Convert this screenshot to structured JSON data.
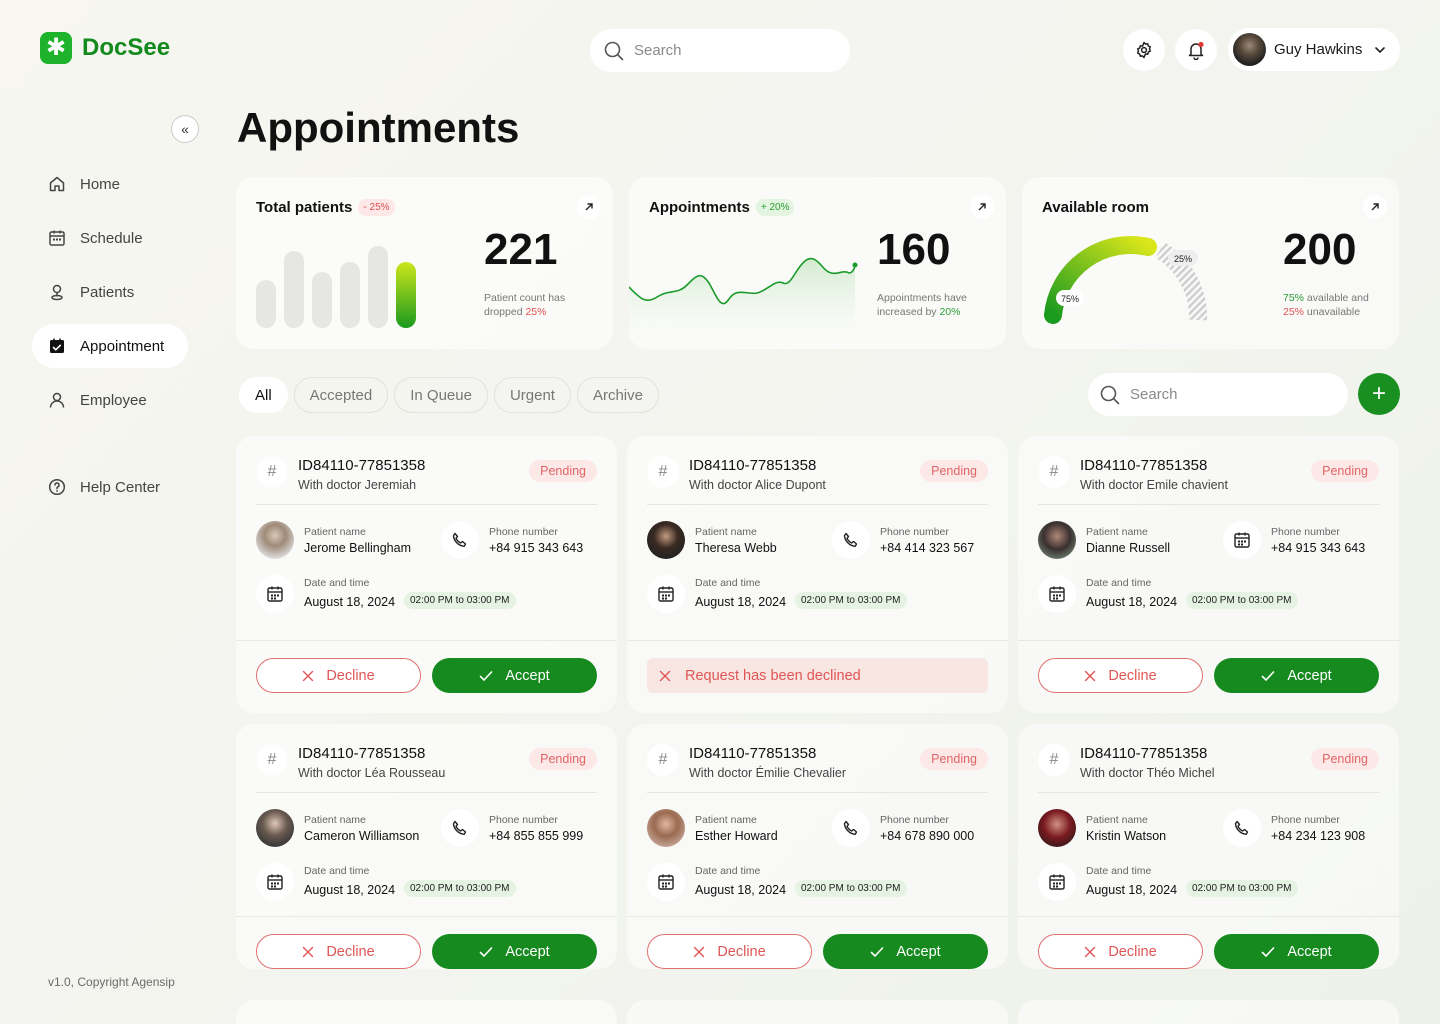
{
  "app": {
    "name": "DocSee"
  },
  "header": {
    "search_placeholder": "Search",
    "user_name": "Guy Hawkins"
  },
  "sidebar": {
    "items": [
      {
        "label": "Home",
        "icon": "home-icon"
      },
      {
        "label": "Schedule",
        "icon": "calendar-icon"
      },
      {
        "label": "Patients",
        "icon": "location-icon"
      },
      {
        "label": "Appointment",
        "icon": "calendar-check-icon",
        "active": true
      },
      {
        "label": "Employee",
        "icon": "user-icon"
      }
    ],
    "help": "Help Center",
    "version": "v1.0, Copyright Agensip"
  },
  "page": {
    "title": "Appointments"
  },
  "stats": [
    {
      "title": "Total patients",
      "badge": "- 25%",
      "value": "221",
      "note_a": "Patient count has dropped ",
      "note_b": "25%"
    },
    {
      "title": "Appointments",
      "badge": "+ 20%",
      "value": "160",
      "note_a": "Appointments have increased by ",
      "note_b": "20%"
    },
    {
      "title": "Available room",
      "value": "200",
      "available": "75%",
      "available_text": " available and",
      "unavailable": "25%",
      "unavailable_text": " unavailable",
      "gauge_a": "75%",
      "gauge_b": "25%"
    }
  ],
  "filters": {
    "tabs": [
      "All",
      "Accepted",
      "In Queue",
      "Urgent",
      "Archive"
    ],
    "search_placeholder": "Search"
  },
  "labels": {
    "patient": "Patient name",
    "phone": "Phone number",
    "datetime": "Date and time",
    "decline": "Decline",
    "accept": "Accept",
    "declined": "Request has been declined"
  },
  "cards": [
    {
      "id": "ID84110-77851358",
      "doctor": "With doctor Jeremiah",
      "status": "Pending",
      "patient": "Jerome Bellingham",
      "phone": "+84 915 343 643",
      "date": "August 18, 2024",
      "time": "02:00 PM to 03:00 PM"
    },
    {
      "id": "ID84110-77851358",
      "doctor": "With doctor Alice Dupont",
      "status": "Pending",
      "patient": "Theresa Webb",
      "phone": "+84 414 323 567",
      "date": "August 18, 2024",
      "time": "02:00 PM to 03:00 PM"
    },
    {
      "id": "ID84110-77851358",
      "doctor": "With doctor Emile chavient",
      "status": "Pending",
      "patient": "Dianne Russell",
      "phone": "+84 915 343 643",
      "date": "August 18, 2024",
      "time": "02:00 PM to 03:00 PM"
    },
    {
      "id": "ID84110-77851358",
      "doctor": "With doctor Léa Rousseau",
      "status": "Pending",
      "patient": "Cameron Williamson",
      "phone": "+84 855 855 999",
      "date": "August 18, 2024",
      "time": "02:00 PM to 03:00 PM"
    },
    {
      "id": "ID84110-77851358",
      "doctor": "With doctor Émilie Chevalier",
      "status": "Pending",
      "patient": "Esther Howard",
      "phone": "+84 678 890 000",
      "date": "August 18, 2024",
      "time": "02:00 PM to 03:00 PM"
    },
    {
      "id": "ID84110-77851358",
      "doctor": "With doctor Théo Michel",
      "status": "Pending",
      "patient": "Kristin Watson",
      "phone": "+84 234 123 908",
      "date": "August 18, 2024",
      "time": "02:00 PM to 03:00 PM"
    }
  ],
  "colors": {
    "brand": "#1db32a",
    "accept": "#168a1f",
    "decline": "#e05555"
  }
}
